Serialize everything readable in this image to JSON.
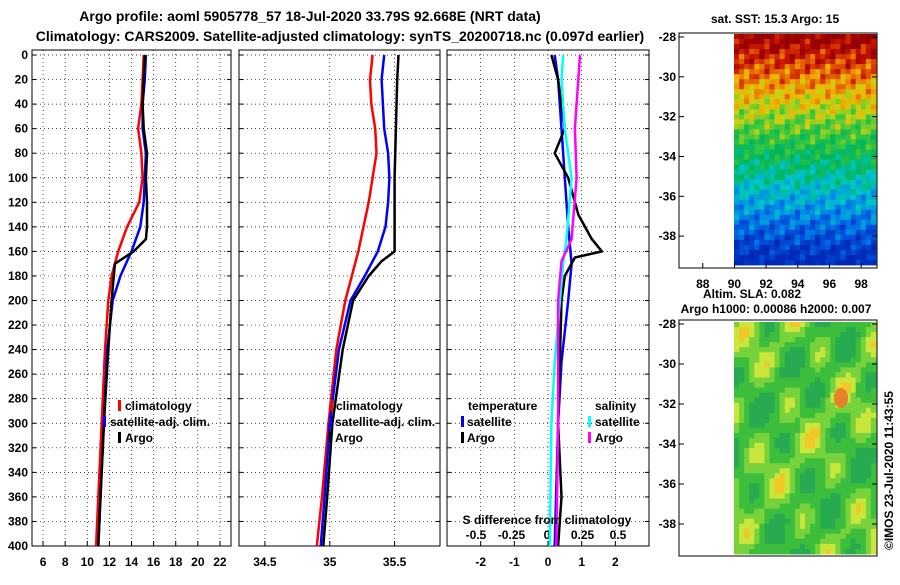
{
  "title_line1": "Argo profile: aoml 5905778_57 18-Jul-2020 33.79S 92.668E (NRT data)",
  "title_line2": "Climatology: CARS2009. Satellite-adjusted climatology: synTS_20200718.nc (0.097d earlier)",
  "map1_title": "sat. SST: 15.3 Argo: 15",
  "map2_title1": "Altim. SLA: 0.082",
  "map2_title2": "Argo h1000: 0.00086 h2000: 0.007",
  "credit": "©IMOS 23-Jul-2020 11:43:55",
  "colors": {
    "climatology": "#ff0000",
    "satellite": "#0000ff",
    "argo": "#000000",
    "sat_salinity": "#00ffff",
    "argo_salinity": "#ff00ff"
  },
  "chart_data": [
    {
      "type": "line",
      "name": "temperature-profile",
      "xlim": [
        5,
        23
      ],
      "ylim": [
        0,
        400
      ],
      "x_ticks": [
        "6",
        "8",
        "10",
        "12",
        "14",
        "16",
        "18",
        "20",
        "22"
      ],
      "x_tick_values": [
        6,
        8,
        10,
        12,
        14,
        16,
        18,
        20,
        22
      ],
      "y_ticks": [
        "0",
        "20",
        "40",
        "60",
        "80",
        "100",
        "120",
        "140",
        "160",
        "180",
        "200",
        "220",
        "240",
        "260",
        "280",
        "300",
        "320",
        "340",
        "360",
        "380",
        "400"
      ],
      "y_tick_values": [
        0,
        20,
        40,
        60,
        80,
        100,
        120,
        140,
        160,
        180,
        200,
        220,
        240,
        260,
        280,
        300,
        320,
        340,
        360,
        380,
        400
      ],
      "legend": [
        "climatology",
        "satellite-adj. clim.",
        "Argo"
      ],
      "series": [
        {
          "name": "climatology",
          "color": "#ff0000",
          "points": [
            [
              15.1,
              0
            ],
            [
              15.0,
              20
            ],
            [
              14.9,
              40
            ],
            [
              14.6,
              60
            ],
            [
              14.9,
              80
            ],
            [
              15.0,
              100
            ],
            [
              14.7,
              120
            ],
            [
              13.6,
              140
            ],
            [
              12.8,
              160
            ],
            [
              12.2,
              180
            ],
            [
              11.9,
              200
            ],
            [
              11.6,
              240
            ],
            [
              11.3,
              300
            ],
            [
              11.0,
              360
            ],
            [
              10.8,
              400
            ]
          ]
        },
        {
          "name": "satellite-adj. clim.",
          "color": "#0000ff",
          "points": [
            [
              15.3,
              0
            ],
            [
              15.2,
              20
            ],
            [
              15.0,
              40
            ],
            [
              15.0,
              60
            ],
            [
              15.3,
              80
            ],
            [
              15.2,
              100
            ],
            [
              15.1,
              120
            ],
            [
              14.8,
              140
            ],
            [
              14.0,
              160
            ],
            [
              13.0,
              180
            ],
            [
              12.3,
              200
            ],
            [
              11.8,
              240
            ],
            [
              11.5,
              300
            ],
            [
              11.2,
              360
            ],
            [
              11.0,
              400
            ]
          ]
        },
        {
          "name": "Argo",
          "color": "#000000",
          "points": [
            [
              15.2,
              0
            ],
            [
              15.1,
              20
            ],
            [
              15.0,
              40
            ],
            [
              15.1,
              60
            ],
            [
              15.4,
              80
            ],
            [
              15.3,
              100
            ],
            [
              15.4,
              120
            ],
            [
              15.4,
              140
            ],
            [
              15.3,
              150
            ],
            [
              14.2,
              160
            ],
            [
              12.5,
              170
            ],
            [
              12.2,
              200
            ],
            [
              11.9,
              240
            ],
            [
              11.5,
              300
            ],
            [
              11.2,
              360
            ],
            [
              11.0,
              400
            ]
          ]
        }
      ]
    },
    {
      "type": "line",
      "name": "salinity-profile",
      "xlim": [
        34.3,
        35.85
      ],
      "ylim": [
        0,
        400
      ],
      "x_ticks": [
        "34.5",
        "35",
        "35.5"
      ],
      "x_tick_values": [
        34.5,
        35,
        35.5
      ],
      "legend": [
        "climatology",
        "satellite-adj. clim.",
        "Argo"
      ],
      "series": [
        {
          "name": "climatology",
          "color": "#ff0000",
          "points": [
            [
              35.33,
              0
            ],
            [
              35.31,
              20
            ],
            [
              35.32,
              40
            ],
            [
              35.35,
              60
            ],
            [
              35.36,
              80
            ],
            [
              35.33,
              100
            ],
            [
              35.3,
              120
            ],
            [
              35.26,
              140
            ],
            [
              35.22,
              160
            ],
            [
              35.17,
              180
            ],
            [
              35.12,
              200
            ],
            [
              35.05,
              240
            ],
            [
              34.99,
              300
            ],
            [
              34.94,
              360
            ],
            [
              34.9,
              400
            ]
          ]
        },
        {
          "name": "satellite-adj. clim.",
          "color": "#0000ff",
          "points": [
            [
              35.42,
              0
            ],
            [
              35.4,
              20
            ],
            [
              35.41,
              40
            ],
            [
              35.42,
              60
            ],
            [
              35.45,
              80
            ],
            [
              35.46,
              100
            ],
            [
              35.45,
              120
            ],
            [
              35.43,
              140
            ],
            [
              35.37,
              160
            ],
            [
              35.27,
              180
            ],
            [
              35.16,
              200
            ],
            [
              35.07,
              240
            ],
            [
              35.0,
              300
            ],
            [
              34.96,
              360
            ],
            [
              34.93,
              400
            ]
          ]
        },
        {
          "name": "Argo",
          "color": "#000000",
          "points": [
            [
              35.53,
              0
            ],
            [
              35.52,
              20
            ],
            [
              35.51,
              60
            ],
            [
              35.5,
              100
            ],
            [
              35.5,
              140
            ],
            [
              35.5,
              160
            ],
            [
              35.4,
              168
            ],
            [
              35.3,
              180
            ],
            [
              35.18,
              200
            ],
            [
              35.1,
              240
            ],
            [
              35.02,
              300
            ],
            [
              34.98,
              360
            ],
            [
              34.95,
              400
            ]
          ]
        }
      ]
    },
    {
      "type": "line",
      "name": "difference-profile",
      "xlim": [
        -3,
        3
      ],
      "ylim": [
        0,
        400
      ],
      "x_ticks": [
        "-2",
        "-1",
        "0",
        "1",
        "2"
      ],
      "x_tick_values": [
        -2,
        -1,
        0,
        1,
        2
      ],
      "inner_ticks": [
        "-0.5",
        "-0.25",
        "0",
        "0.25",
        "0.5"
      ],
      "inner_tick_values": [
        -0.5,
        -0.25,
        0,
        0.25,
        0.5
      ],
      "xlabel": "S difference from climatology",
      "legend_temperature_title": "temperature",
      "legend_salinity_title": "salinity",
      "legend_temperature": [
        "satellite",
        "Argo"
      ],
      "legend_salinity": [
        "satellite",
        "Argo"
      ],
      "series": [
        {
          "name": "temperature satellite",
          "color": "#0000ff",
          "points": [
            [
              0.2,
              0
            ],
            [
              0.3,
              20
            ],
            [
              0.4,
              60
            ],
            [
              0.5,
              100
            ],
            [
              0.6,
              140
            ],
            [
              0.7,
              170
            ],
            [
              0.6,
              200
            ],
            [
              0.4,
              250
            ],
            [
              0.3,
              300
            ],
            [
              0.2,
              400
            ]
          ]
        },
        {
          "name": "temperature Argo",
          "color": "#000000",
          "points": [
            [
              0.1,
              0
            ],
            [
              0.3,
              20
            ],
            [
              0.5,
              60
            ],
            [
              0.2,
              80
            ],
            [
              0.6,
              100
            ],
            [
              0.9,
              130
            ],
            [
              1.3,
              150
            ],
            [
              1.6,
              160
            ],
            [
              0.8,
              165
            ],
            [
              0.5,
              180
            ],
            [
              0.4,
              200
            ],
            [
              0.3,
              300
            ],
            [
              0.4,
              360
            ],
            [
              0.3,
              400
            ]
          ]
        },
        {
          "name": "salinity satellite",
          "color": "#00ffff",
          "points": [
            [
              0.45,
              0
            ],
            [
              0.4,
              20
            ],
            [
              0.5,
              60
            ],
            [
              0.7,
              100
            ],
            [
              0.55,
              150
            ],
            [
              0.45,
              170
            ],
            [
              0.2,
              250
            ],
            [
              0.1,
              300
            ],
            [
              0.05,
              400
            ]
          ]
        },
        {
          "name": "salinity Argo",
          "color": "#ff00ff",
          "points": [
            [
              0.95,
              0
            ],
            [
              0.9,
              20
            ],
            [
              0.8,
              60
            ],
            [
              0.85,
              100
            ],
            [
              0.7,
              150
            ],
            [
              0.4,
              168
            ],
            [
              0.3,
              200
            ],
            [
              0.3,
              300
            ],
            [
              0.25,
              400
            ]
          ]
        }
      ]
    },
    {
      "type": "heatmap",
      "name": "sst-map",
      "x_ticks": [
        "88",
        "90",
        "92",
        "94",
        "96",
        "98"
      ],
      "x_tick_values": [
        88,
        90,
        92,
        94,
        96,
        98
      ],
      "y_ticks": [
        "-28",
        "-30",
        "-32",
        "-34",
        "-36",
        "-38"
      ],
      "y_tick_values": [
        -28,
        -30,
        -32,
        -34,
        -36,
        -38
      ],
      "xlim": [
        86.5,
        99
      ],
      "ylim": [
        -39.6,
        -27.8
      ]
    },
    {
      "type": "heatmap",
      "name": "sla-map",
      "y_ticks": [
        "-28",
        "-30",
        "-32",
        "-34",
        "-36",
        "-38"
      ],
      "y_tick_values": [
        -28,
        -30,
        -32,
        -34,
        -36,
        -38
      ],
      "ylim": [
        -39.6,
        -27.8
      ]
    }
  ]
}
